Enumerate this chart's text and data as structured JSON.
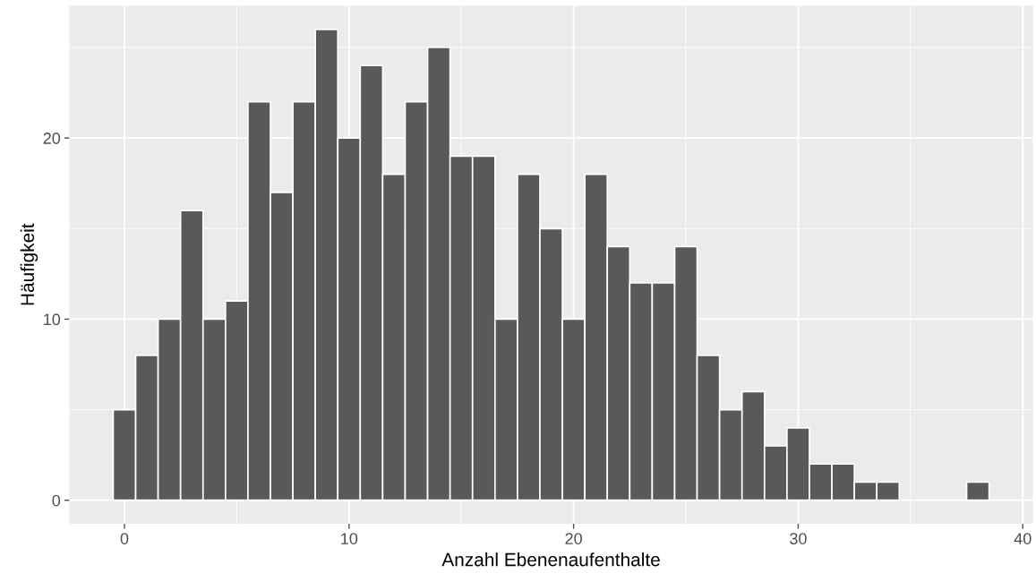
{
  "chart_data": {
    "type": "histogram",
    "xlabel": "Anzahl Ebenenaufenthalte",
    "ylabel": "Häufigkeit",
    "bins": [
      -0.5,
      0.5,
      1.5,
      2.5,
      3.5,
      4.5,
      5.5,
      6.5,
      7.5,
      8.5,
      9.5,
      10.5,
      11.5,
      12.5,
      13.5,
      14.5,
      15.5,
      16.5,
      17.5,
      18.5,
      19.5,
      20.5,
      21.5,
      22.5,
      23.5,
      24.5,
      25.5,
      26.5,
      27.5,
      28.5,
      29.5,
      30.5,
      31.5,
      32.5,
      33.5,
      34.5,
      35.5,
      36.5,
      37.5,
      38.5
    ],
    "values": [
      5,
      8,
      10,
      16,
      10,
      11,
      22,
      17,
      22,
      26,
      20,
      24,
      18,
      22,
      25,
      19,
      19,
      10,
      18,
      15,
      10,
      18,
      14,
      12,
      12,
      14,
      8,
      5,
      6,
      3,
      4,
      2,
      2,
      1,
      1,
      0,
      0,
      0,
      1
    ],
    "color": "#595959",
    "xlim": [
      -2.45,
      40.45
    ],
    "ylim": [
      -1.3,
      27.3
    ],
    "xticks": [
      0,
      10,
      20,
      30,
      40
    ],
    "yticks": [
      0,
      10,
      20
    ],
    "grid": true
  }
}
